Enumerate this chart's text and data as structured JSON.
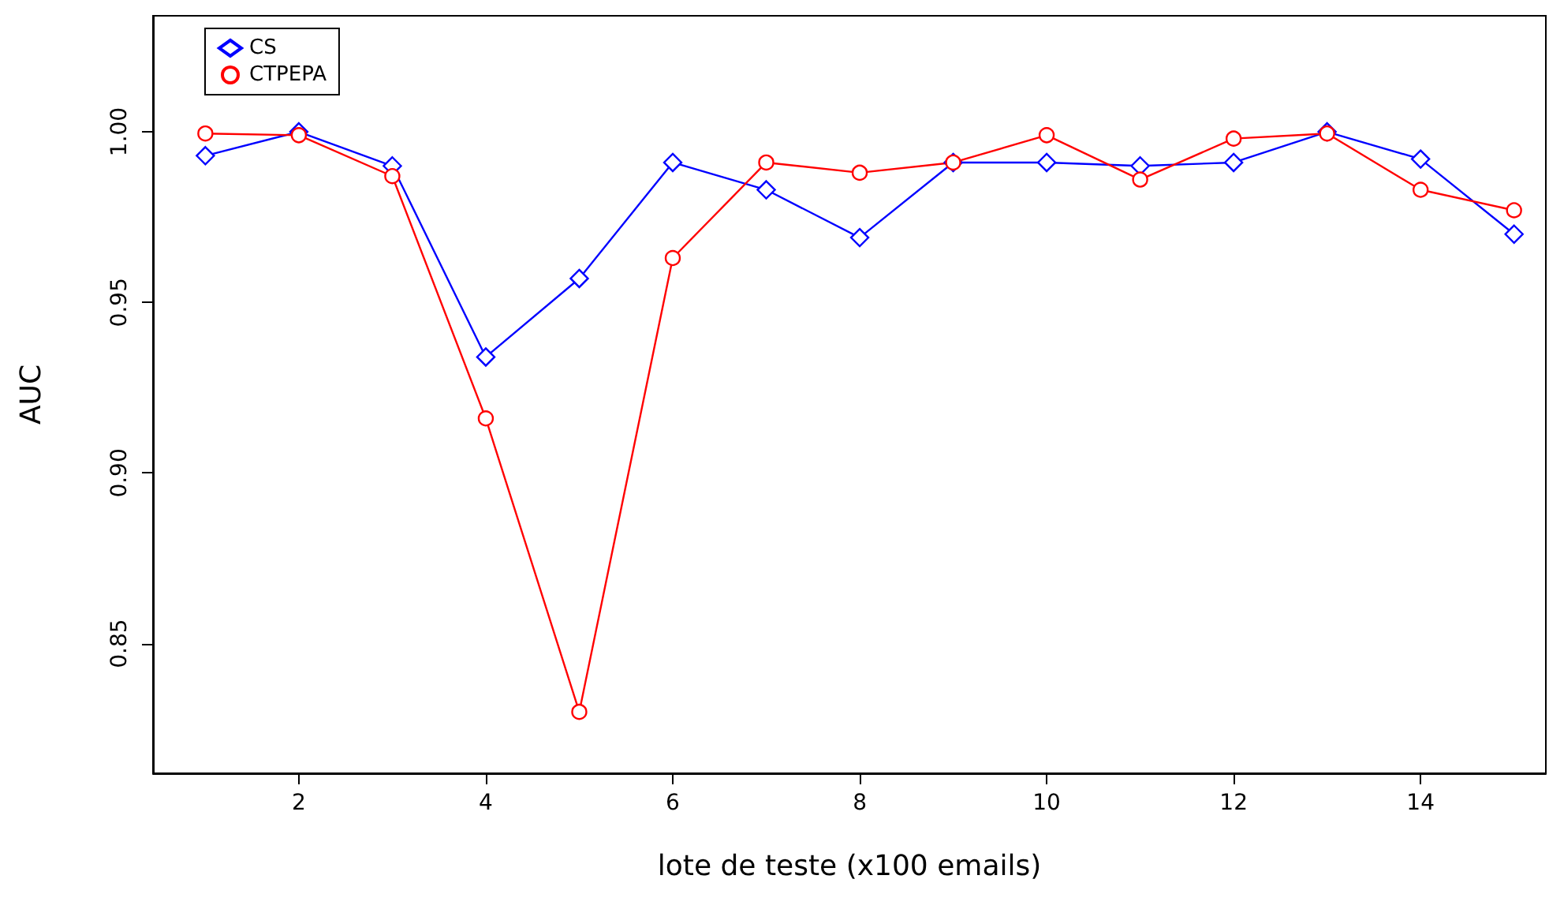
{
  "chart_data": {
    "type": "line",
    "xlabel": "lote de teste (x100 emails)",
    "ylabel": "AUC",
    "x": [
      1,
      2,
      3,
      4,
      5,
      6,
      7,
      8,
      9,
      10,
      11,
      12,
      13,
      14,
      15
    ],
    "series": [
      {
        "name": "CS",
        "color": "#0000ff",
        "marker": "diamond",
        "values": [
          0.993,
          1.0,
          0.99,
          0.934,
          0.957,
          0.991,
          0.983,
          0.969,
          0.991,
          0.991,
          0.99,
          0.991,
          1.0,
          0.992,
          0.97
        ]
      },
      {
        "name": "CTPEPA",
        "color": "#ff0000",
        "marker": "circle",
        "values": [
          0.9995,
          0.999,
          0.987,
          0.916,
          0.83,
          0.963,
          0.991,
          0.988,
          0.991,
          0.999,
          0.986,
          0.998,
          0.9995,
          0.983,
          0.977
        ]
      }
    ],
    "xlim": [
      0.44,
      15.34
    ],
    "xticks": [
      2,
      4,
      6,
      8,
      10,
      12,
      14
    ],
    "ylim": [
      0.812,
      1.034
    ],
    "yticks": [
      0.85,
      {
        "value": 0.9,
        "label": "0.90"
      },
      0.95,
      {
        "value": 1,
        "label": "1.00"
      }
    ],
    "grid": false,
    "legend": "top left",
    "line_style": "solid"
  }
}
